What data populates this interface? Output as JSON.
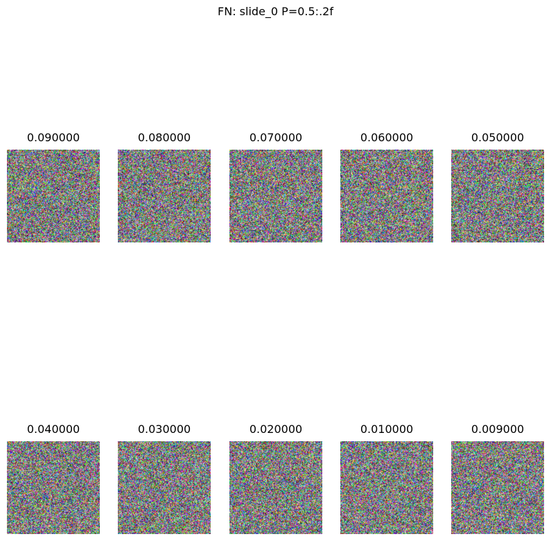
{
  "suptitle": "FN: slide_0 P=0.5:.2f",
  "panels": [
    {
      "title": "0.090000",
      "image": "random-rgb-noise"
    },
    {
      "title": "0.080000",
      "image": "random-rgb-noise"
    },
    {
      "title": "0.070000",
      "image": "random-rgb-noise"
    },
    {
      "title": "0.060000",
      "image": "random-rgb-noise"
    },
    {
      "title": "0.050000",
      "image": "random-rgb-noise"
    },
    {
      "title": "0.040000",
      "image": "random-rgb-noise"
    },
    {
      "title": "0.030000",
      "image": "random-rgb-noise"
    },
    {
      "title": "0.020000",
      "image": "random-rgb-noise"
    },
    {
      "title": "0.010000",
      "image": "random-rgb-noise"
    },
    {
      "title": "0.009000",
      "image": "random-rgb-noise"
    }
  ]
}
